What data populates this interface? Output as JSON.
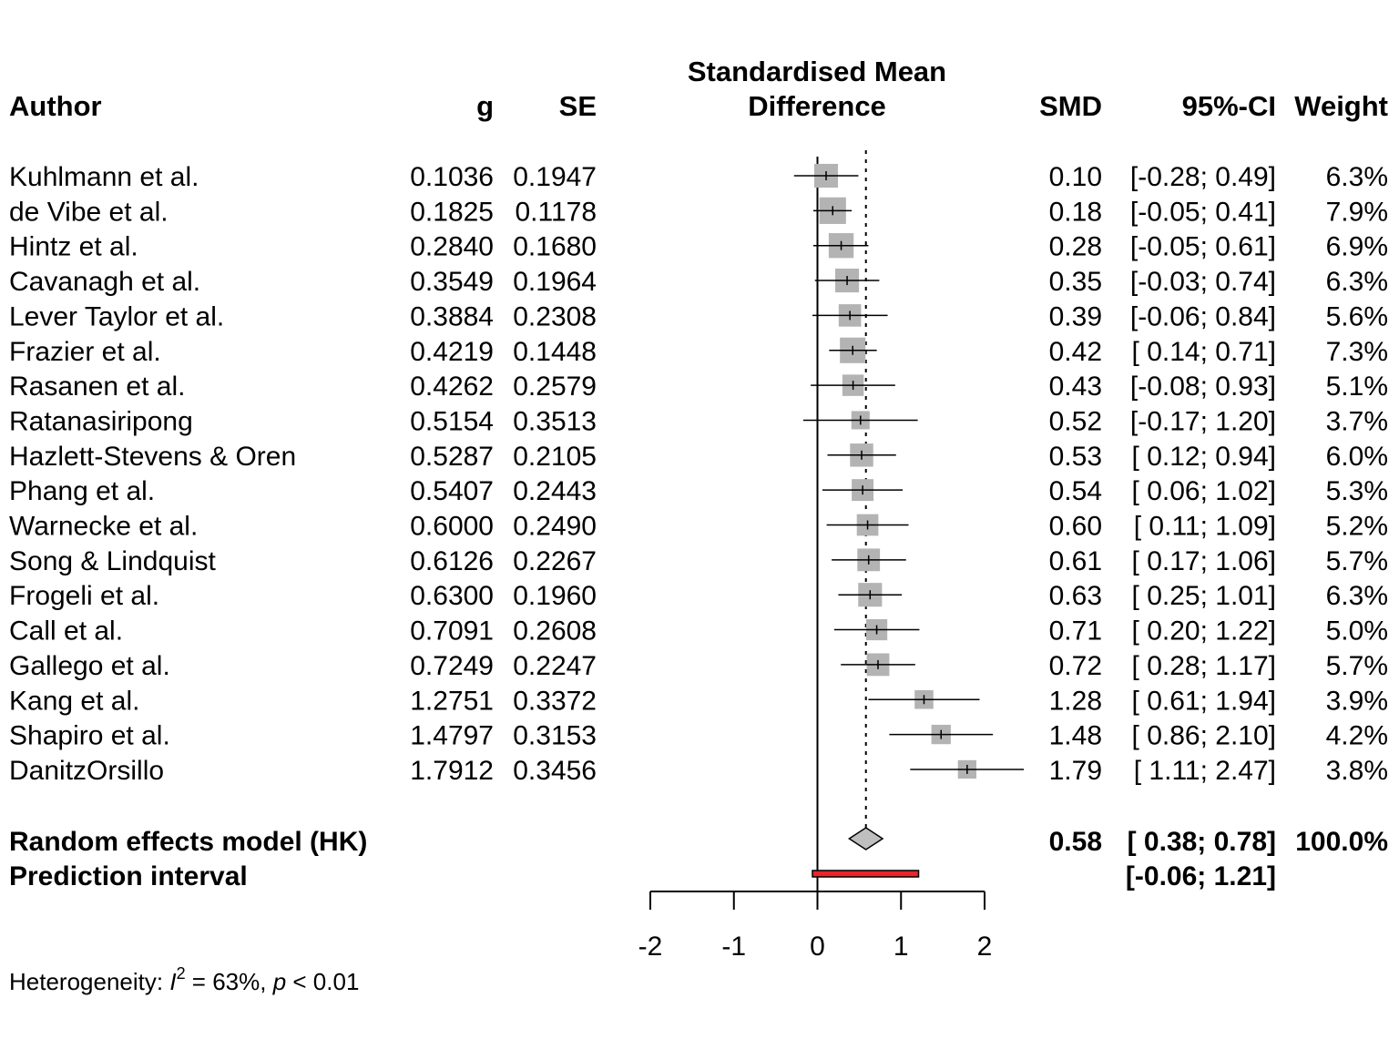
{
  "chart_data": {
    "type": "forest",
    "headers": {
      "author": "Author",
      "g": "g",
      "se": "SE",
      "plot_title_line1": "Standardised Mean",
      "plot_title_line2": "Difference",
      "smd": "SMD",
      "ci": "95%-CI",
      "weight": "Weight"
    },
    "studies": [
      {
        "author": "Kuhlmann et al.",
        "g": "0.1036",
        "se": "0.1947",
        "smd_label": "0.10",
        "ci_label": "[-0.28; 0.49]",
        "weight_label": "6.3%",
        "smd": 0.1036,
        "lower": -0.28,
        "upper": 0.49,
        "weight": 6.3
      },
      {
        "author": "de Vibe et al.",
        "g": "0.1825",
        "se": "0.1178",
        "smd_label": "0.18",
        "ci_label": "[-0.05; 0.41]",
        "weight_label": "7.9%",
        "smd": 0.1825,
        "lower": -0.05,
        "upper": 0.41,
        "weight": 7.9
      },
      {
        "author": "Hintz et al.",
        "g": "0.2840",
        "se": "0.1680",
        "smd_label": "0.28",
        "ci_label": "[-0.05; 0.61]",
        "weight_label": "6.9%",
        "smd": 0.284,
        "lower": -0.05,
        "upper": 0.61,
        "weight": 6.9
      },
      {
        "author": "Cavanagh et al.",
        "g": "0.3549",
        "se": "0.1964",
        "smd_label": "0.35",
        "ci_label": "[-0.03; 0.74]",
        "weight_label": "6.3%",
        "smd": 0.3549,
        "lower": -0.03,
        "upper": 0.74,
        "weight": 6.3
      },
      {
        "author": "Lever Taylor et al.",
        "g": "0.3884",
        "se": "0.2308",
        "smd_label": "0.39",
        "ci_label": "[-0.06; 0.84]",
        "weight_label": "5.6%",
        "smd": 0.3884,
        "lower": -0.06,
        "upper": 0.84,
        "weight": 5.6
      },
      {
        "author": "Frazier et al.",
        "g": "0.4219",
        "se": "0.1448",
        "smd_label": "0.42",
        "ci_label": "[ 0.14; 0.71]",
        "weight_label": "7.3%",
        "smd": 0.4219,
        "lower": 0.14,
        "upper": 0.71,
        "weight": 7.3
      },
      {
        "author": "Rasanen et al.",
        "g": "0.4262",
        "se": "0.2579",
        "smd_label": "0.43",
        "ci_label": "[-0.08; 0.93]",
        "weight_label": "5.1%",
        "smd": 0.4262,
        "lower": -0.08,
        "upper": 0.93,
        "weight": 5.1
      },
      {
        "author": "Ratanasiripong",
        "g": "0.5154",
        "se": "0.3513",
        "smd_label": "0.52",
        "ci_label": "[-0.17; 1.20]",
        "weight_label": "3.7%",
        "smd": 0.5154,
        "lower": -0.17,
        "upper": 1.2,
        "weight": 3.7
      },
      {
        "author": "Hazlett-Stevens & Oren",
        "g": "0.5287",
        "se": "0.2105",
        "smd_label": "0.53",
        "ci_label": "[ 0.12; 0.94]",
        "weight_label": "6.0%",
        "smd": 0.5287,
        "lower": 0.12,
        "upper": 0.94,
        "weight": 6.0
      },
      {
        "author": "Phang et al.",
        "g": "0.5407",
        "se": "0.2443",
        "smd_label": "0.54",
        "ci_label": "[ 0.06; 1.02]",
        "weight_label": "5.3%",
        "smd": 0.5407,
        "lower": 0.06,
        "upper": 1.02,
        "weight": 5.3
      },
      {
        "author": "Warnecke et al.",
        "g": "0.6000",
        "se": "0.2490",
        "smd_label": "0.60",
        "ci_label": "[ 0.11; 1.09]",
        "weight_label": "5.2%",
        "smd": 0.6,
        "lower": 0.11,
        "upper": 1.09,
        "weight": 5.2
      },
      {
        "author": "Song & Lindquist",
        "g": "0.6126",
        "se": "0.2267",
        "smd_label": "0.61",
        "ci_label": "[ 0.17; 1.06]",
        "weight_label": "5.7%",
        "smd": 0.6126,
        "lower": 0.17,
        "upper": 1.06,
        "weight": 5.7
      },
      {
        "author": "Frogeli et al.",
        "g": "0.6300",
        "se": "0.1960",
        "smd_label": "0.63",
        "ci_label": "[ 0.25; 1.01]",
        "weight_label": "6.3%",
        "smd": 0.63,
        "lower": 0.25,
        "upper": 1.01,
        "weight": 6.3
      },
      {
        "author": "Call et al.",
        "g": "0.7091",
        "se": "0.2608",
        "smd_label": "0.71",
        "ci_label": "[ 0.20; 1.22]",
        "weight_label": "5.0%",
        "smd": 0.7091,
        "lower": 0.2,
        "upper": 1.22,
        "weight": 5.0
      },
      {
        "author": "Gallego et al.",
        "g": "0.7249",
        "se": "0.2247",
        "smd_label": "0.72",
        "ci_label": "[ 0.28; 1.17]",
        "weight_label": "5.7%",
        "smd": 0.7249,
        "lower": 0.28,
        "upper": 1.17,
        "weight": 5.7
      },
      {
        "author": "Kang et al.",
        "g": "1.2751",
        "se": "0.3372",
        "smd_label": "1.28",
        "ci_label": "[ 0.61; 1.94]",
        "weight_label": "3.9%",
        "smd": 1.2751,
        "lower": 0.61,
        "upper": 1.94,
        "weight": 3.9
      },
      {
        "author": "Shapiro et al.",
        "g": "1.4797",
        "se": "0.3153",
        "smd_label": "1.48",
        "ci_label": "[ 0.86; 2.10]",
        "weight_label": "4.2%",
        "smd": 1.4797,
        "lower": 0.86,
        "upper": 2.1,
        "weight": 4.2
      },
      {
        "author": "DanitzOrsillo",
        "g": "1.7912",
        "se": "0.3456",
        "smd_label": "1.79",
        "ci_label": "[ 1.11; 2.47]",
        "weight_label": "3.8%",
        "smd": 1.7912,
        "lower": 1.11,
        "upper": 2.47,
        "weight": 3.8
      }
    ],
    "pooled": {
      "label": "Random effects model (HK)",
      "smd_label": "0.58",
      "ci_label": "[ 0.38; 0.78]",
      "weight_label": "100.0%",
      "smd": 0.58,
      "lower": 0.38,
      "upper": 0.78
    },
    "prediction": {
      "label": "Prediction interval",
      "ci_label": "[-0.06; 1.21]",
      "lower": -0.06,
      "upper": 1.21
    },
    "heterogeneity": {
      "prefix": "Heterogeneity: ",
      "stat": "I",
      "sup": "2",
      "mid": " = 63%, ",
      "p": "p",
      "suffix": " < 0.01"
    },
    "x_axis": {
      "ticks": [
        -2,
        -1,
        0,
        1,
        2
      ],
      "tick_labels": [
        "-2",
        "-1",
        "0",
        "1",
        "2"
      ],
      "xlim": [
        -2,
        2
      ]
    },
    "colors": {
      "square": "#b3b3b3",
      "diamond": "#bfbfbf",
      "prediction": "#e8262b"
    }
  }
}
